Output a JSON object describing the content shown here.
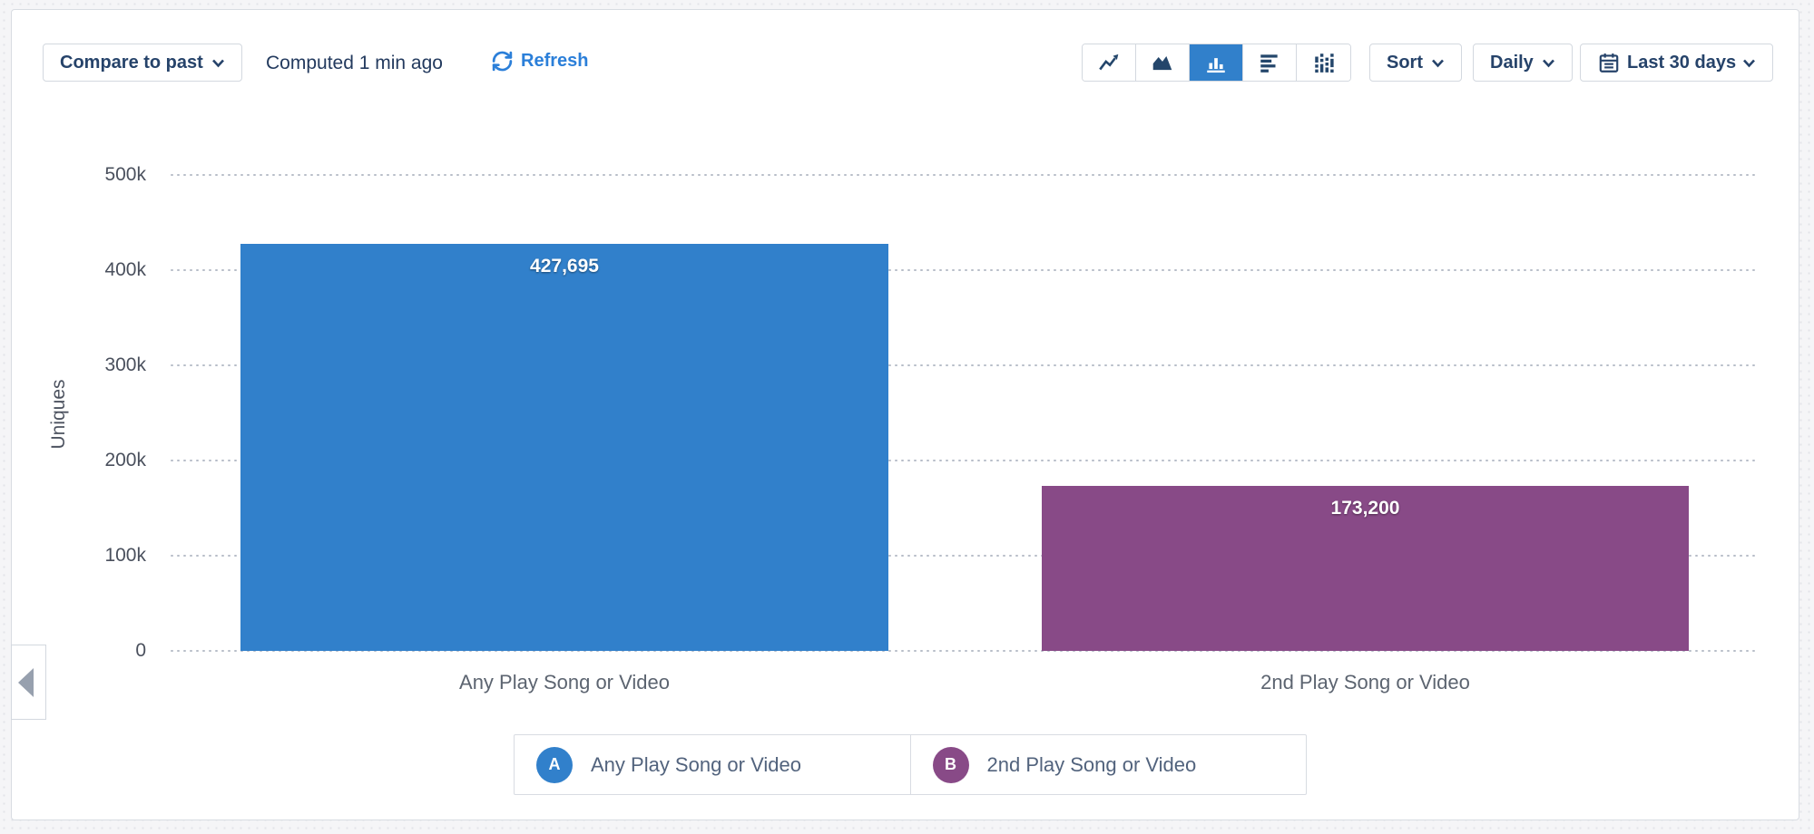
{
  "toolbar": {
    "compare_label": "Compare to past",
    "computed_text": "Computed 1 min ago",
    "refresh_label": "Refresh",
    "sort_label": "Sort",
    "interval_label": "Daily",
    "range_label": "Last 30 days",
    "chart_types": [
      {
        "name": "line-chart",
        "active": false
      },
      {
        "name": "area-chart",
        "active": false
      },
      {
        "name": "bar-chart",
        "active": true
      },
      {
        "name": "horizontal-bars",
        "active": false
      },
      {
        "name": "distribution",
        "active": false
      }
    ]
  },
  "colors": {
    "accent_blue": "#3180cb",
    "series_a": "#3180cb",
    "series_b": "#884a87",
    "navy_text": "#26436a",
    "link_blue": "#2b7fd9"
  },
  "chart_data": {
    "type": "bar",
    "title": "",
    "xlabel": "",
    "ylabel": "Uniques",
    "ylim": [
      0,
      500000
    ],
    "grid": "dotted-horizontal",
    "legend_position": "bottom",
    "yticks": [
      {
        "value": 500000,
        "label": "500k"
      },
      {
        "value": 400000,
        "label": "400k"
      },
      {
        "value": 300000,
        "label": "300k"
      },
      {
        "value": 200000,
        "label": "200k"
      },
      {
        "value": 100000,
        "label": "100k"
      },
      {
        "value": 0,
        "label": "0"
      }
    ],
    "categories": [
      "Any Play Song or Video",
      "2nd Play Song or Video"
    ],
    "series": [
      {
        "letter": "A",
        "name": "Any Play Song or Video",
        "value": 427695,
        "value_label": "427,695",
        "color": "#3180cb"
      },
      {
        "letter": "B",
        "name": "2nd Play Song or Video",
        "value": 173200,
        "value_label": "173,200",
        "color": "#884a87"
      }
    ]
  }
}
